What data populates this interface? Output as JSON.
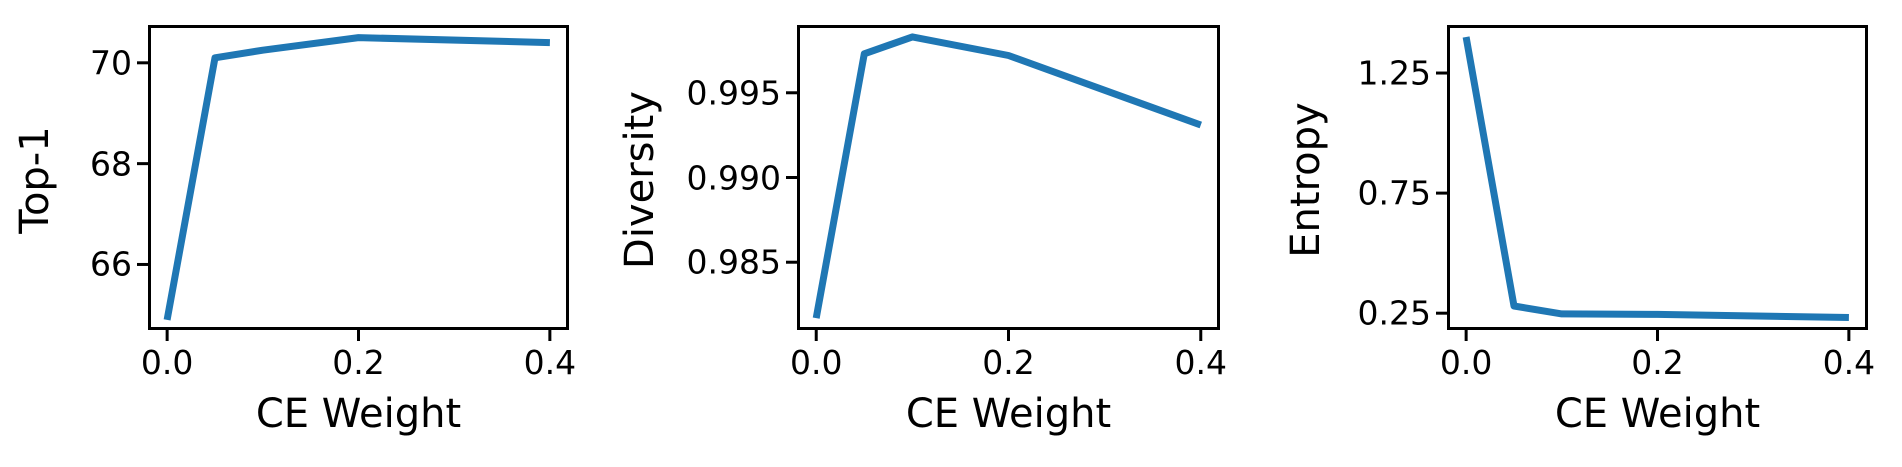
{
  "figure": {
    "description": "Three line subplots sweeping CE Weight against Top-1, Diversity and Entropy"
  },
  "style": {
    "line_color": "#1f77b4",
    "axis_color": "#000000",
    "background_color": "#ffffff"
  },
  "chart_data": [
    {
      "type": "line",
      "title": "",
      "xlabel": "CE Weight",
      "ylabel": "Top-1",
      "x": [
        0.0,
        0.05,
        0.1,
        0.2,
        0.4
      ],
      "y": [
        64.9,
        70.1,
        70.25,
        70.5,
        70.4
      ],
      "xlim": [
        -0.02,
        0.42
      ],
      "ylim": [
        64.7,
        70.75
      ],
      "xticks": [
        0.0,
        0.2,
        0.4
      ],
      "yticks": [
        70,
        68,
        66
      ],
      "xtick_labels": [
        "0.0",
        "0.2",
        "0.4"
      ],
      "ytick_labels": [
        "70",
        "68",
        "66"
      ],
      "grid": false,
      "legend": null
    },
    {
      "type": "line",
      "title": "",
      "xlabel": "CE Weight",
      "ylabel": "Diversity",
      "x": [
        0.0,
        0.05,
        0.1,
        0.2,
        0.4
      ],
      "y": [
        0.9817,
        0.9973,
        0.9983,
        0.9972,
        0.9931
      ],
      "xlim": [
        -0.02,
        0.42
      ],
      "ylim": [
        0.981,
        0.999
      ],
      "xticks": [
        0.0,
        0.2,
        0.4
      ],
      "yticks": [
        0.995,
        0.99,
        0.985
      ],
      "xtick_labels": [
        "0.0",
        "0.2",
        "0.4"
      ],
      "ytick_labels": [
        "0.995",
        "0.990",
        "0.985"
      ],
      "grid": false,
      "legend": null
    },
    {
      "type": "line",
      "title": "",
      "xlabel": "CE Weight",
      "ylabel": "Entropy",
      "x": [
        0.0,
        0.05,
        0.1,
        0.2,
        0.4
      ],
      "y": [
        1.4,
        0.28,
        0.247,
        0.245,
        0.232
      ],
      "xlim": [
        -0.02,
        0.42
      ],
      "ylim": [
        0.18,
        1.45
      ],
      "xticks": [
        0.0,
        0.2,
        0.4
      ],
      "yticks": [
        1.25,
        0.75,
        0.25
      ],
      "xtick_labels": [
        "0.0",
        "0.2",
        "0.4"
      ],
      "ytick_labels": [
        "1.25",
        "0.75",
        "0.25"
      ],
      "grid": false,
      "legend": null
    }
  ]
}
